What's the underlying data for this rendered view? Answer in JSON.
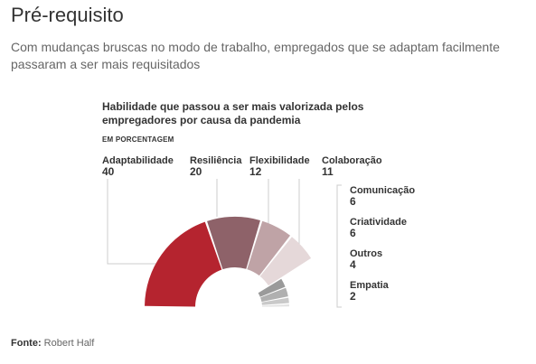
{
  "header": {
    "title": "Pré-requisito",
    "subtitle": "Com mudanças bruscas no modo de trabalho, empregados que se adaptam facilmente passaram a ser mais requisitados"
  },
  "chart_data": {
    "type": "pie",
    "subtype": "semi-donut",
    "title": "Habilidade que passou a ser mais valorizada pelos empregadores por causa da pandemia",
    "unit_label": "EM PORCENTAGEM",
    "categories": [
      "Adaptabilidade",
      "Resiliência",
      "Flexibilidade",
      "Colaboração",
      "Comunicação",
      "Criatividade",
      "Outros",
      "Empatia"
    ],
    "values": [
      40,
      20,
      12,
      11,
      6,
      6,
      4,
      2
    ],
    "colors": [
      "#b5242f",
      "#8e6269",
      "#bfa3a6",
      "#e5d8d9",
      "#9a9a9a",
      "#b0b0b0",
      "#c9c9c9",
      "#e2e2e2"
    ]
  },
  "footer": {
    "source_label": "Fonte:",
    "source_value": "Robert Half"
  }
}
